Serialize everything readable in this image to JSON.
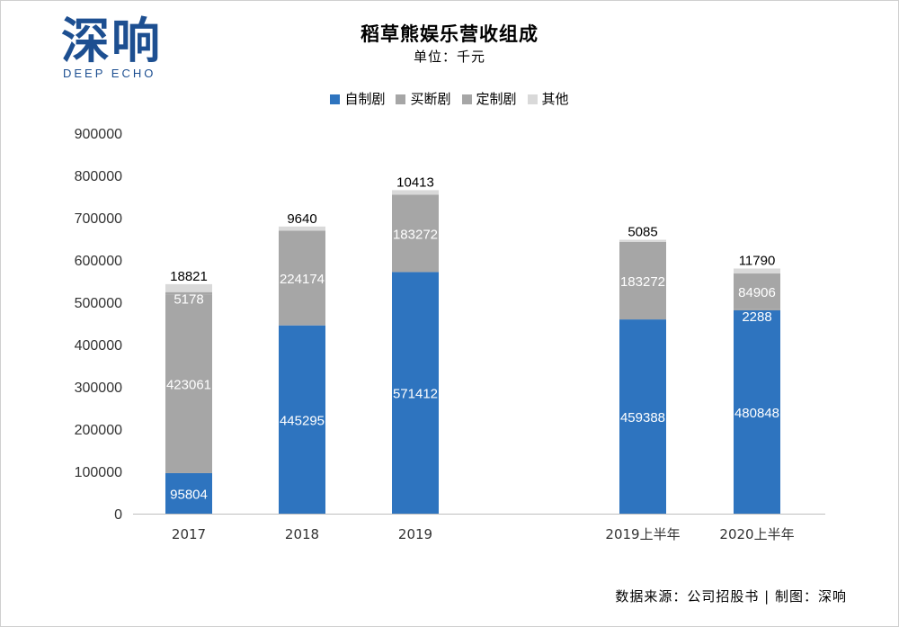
{
  "logo": {
    "cn": "深响",
    "en": "DEEP ECHO"
  },
  "title": "稻草熊娱乐营收组成",
  "subtitle": "单位：千元",
  "source": "数据来源：公司招股书 | 制图：深响",
  "chart_data": {
    "type": "bar",
    "stacked": true,
    "categories": [
      "2017",
      "2018",
      "2019",
      "2019上半年",
      "2020上半年"
    ],
    "ylim": [
      0,
      900000
    ],
    "yticks": [
      "0",
      "100000",
      "200000",
      "300000",
      "400000",
      "500000",
      "600000",
      "700000",
      "800000",
      "900000"
    ],
    "legend_position": "top",
    "grid": false,
    "series": [
      {
        "name": "自制剧",
        "color": "#2e74bf",
        "values": [
          95804,
          445295,
          571412,
          459388,
          480848
        ],
        "labels": [
          "95804",
          "445295",
          "571412",
          "459388",
          "480848"
        ],
        "label_color": "#ffffff"
      },
      {
        "name": "买断剧",
        "color": "#a6a6a6",
        "values": [
          423061,
          224174,
          183272,
          183272,
          2288
        ],
        "labels": [
          "423061",
          "224174",
          "183272",
          "183272",
          "2288"
        ],
        "label_color": "#ffffff"
      },
      {
        "name": "定制剧",
        "color": "#a6a6a6",
        "values": [
          5178,
          0,
          0,
          0,
          84906
        ],
        "labels": [
          "5178",
          "",
          "",
          "",
          "84906"
        ],
        "label_color": "#ffffff"
      },
      {
        "name": "其他",
        "color": "#d9d9d9",
        "values": [
          18821,
          9640,
          10413,
          5085,
          11790
        ],
        "labels": [
          "18821",
          "9640",
          "10413",
          "5085",
          "11790"
        ],
        "label_color": "#000000"
      }
    ]
  }
}
